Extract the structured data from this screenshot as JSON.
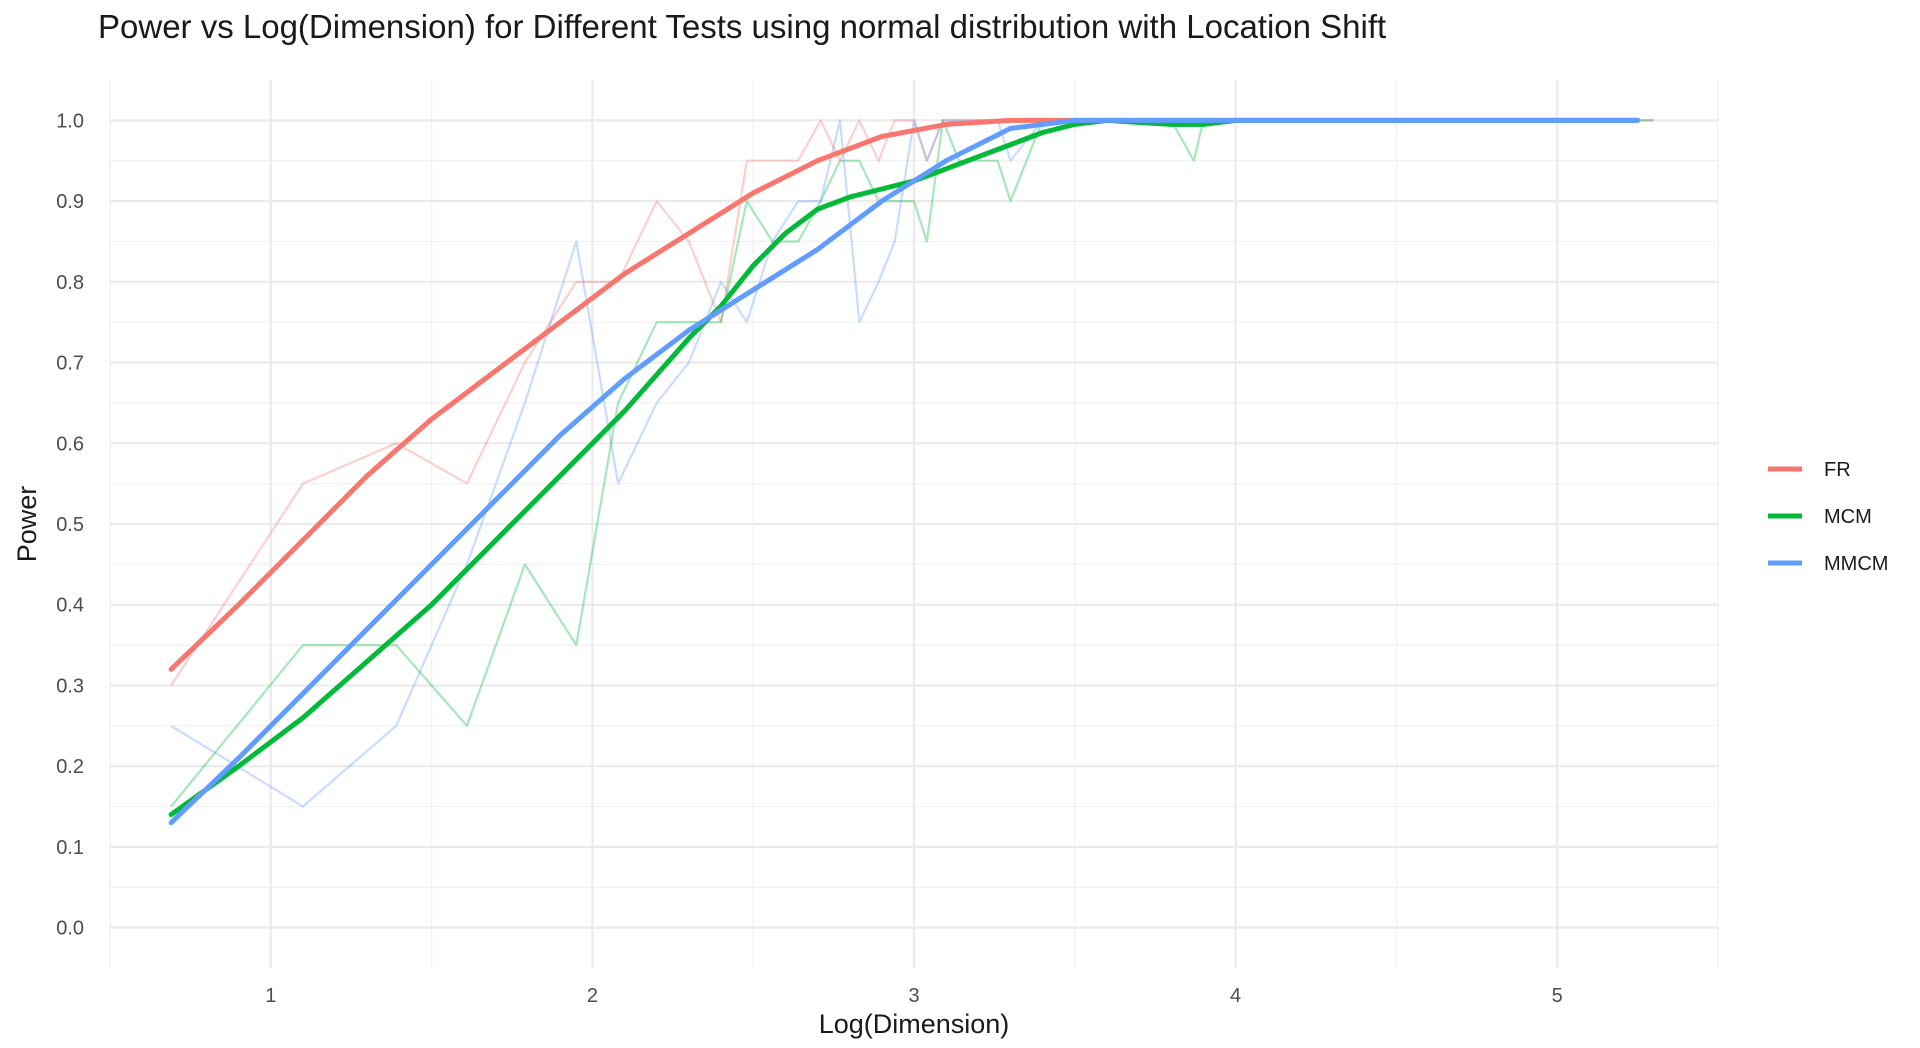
{
  "chart_data": {
    "type": "line",
    "title": "Power vs Log(Dimension) for Different Tests using normal distribution with Location Shift",
    "xlabel": "Log(Dimension)",
    "ylabel": "Power",
    "xlim": [
      0.5,
      5.5
    ],
    "ylim": [
      -0.05,
      1.05
    ],
    "x_ticks": [
      1,
      2,
      3,
      4,
      5
    ],
    "x_tick_labels": [
      "1",
      "2",
      "3",
      "4",
      "5"
    ],
    "y_ticks": [
      0.0,
      0.1,
      0.2,
      0.3,
      0.4,
      0.5,
      0.6,
      0.7,
      0.8,
      0.9,
      1.0
    ],
    "y_tick_labels": [
      "0.0",
      "0.1",
      "0.2",
      "0.3",
      "0.4",
      "0.5",
      "0.6",
      "0.7",
      "0.8",
      "0.9",
      "1.0"
    ],
    "grid": true,
    "legend_position": "right",
    "series": [
      {
        "name": "FR",
        "color": "#F8766D",
        "raw": [
          [
            0.69,
            0.3
          ],
          [
            1.1,
            0.55
          ],
          [
            1.39,
            0.6
          ],
          [
            1.61,
            0.55
          ],
          [
            1.79,
            0.7
          ],
          [
            1.95,
            0.8
          ],
          [
            2.08,
            0.8
          ],
          [
            2.2,
            0.9
          ],
          [
            2.3,
            0.85
          ],
          [
            2.4,
            0.75
          ],
          [
            2.48,
            0.95
          ],
          [
            2.56,
            0.95
          ],
          [
            2.64,
            0.95
          ],
          [
            2.71,
            1.0
          ],
          [
            2.77,
            0.95
          ],
          [
            2.83,
            1.0
          ],
          [
            2.89,
            0.95
          ],
          [
            2.94,
            1.0
          ],
          [
            3.0,
            1.0
          ],
          [
            3.04,
            0.95
          ],
          [
            3.09,
            1.0
          ],
          [
            3.14,
            1.0
          ],
          [
            3.18,
            1.0
          ],
          [
            3.22,
            1.0
          ],
          [
            3.26,
            1.0
          ],
          [
            3.3,
            1.0
          ],
          [
            3.4,
            1.0
          ],
          [
            3.5,
            1.0
          ],
          [
            4.0,
            1.0
          ],
          [
            4.5,
            1.0
          ],
          [
            5.0,
            1.0
          ],
          [
            5.3,
            1.0
          ]
        ],
        "smooth": [
          [
            0.69,
            0.32
          ],
          [
            0.9,
            0.4
          ],
          [
            1.1,
            0.48
          ],
          [
            1.3,
            0.56
          ],
          [
            1.5,
            0.63
          ],
          [
            1.7,
            0.69
          ],
          [
            1.9,
            0.75
          ],
          [
            2.1,
            0.81
          ],
          [
            2.3,
            0.86
          ],
          [
            2.5,
            0.91
          ],
          [
            2.7,
            0.95
          ],
          [
            2.9,
            0.98
          ],
          [
            3.1,
            0.995
          ],
          [
            3.3,
            1.0
          ],
          [
            3.5,
            1.0
          ],
          [
            4.0,
            1.0
          ],
          [
            5.0,
            1.0
          ],
          [
            5.25,
            1.0
          ]
        ]
      },
      {
        "name": "MCM",
        "color": "#00BA38",
        "raw": [
          [
            0.69,
            0.15
          ],
          [
            1.1,
            0.35
          ],
          [
            1.39,
            0.35
          ],
          [
            1.61,
            0.25
          ],
          [
            1.79,
            0.45
          ],
          [
            1.95,
            0.35
          ],
          [
            2.08,
            0.65
          ],
          [
            2.2,
            0.75
          ],
          [
            2.3,
            0.75
          ],
          [
            2.4,
            0.75
          ],
          [
            2.48,
            0.9
          ],
          [
            2.56,
            0.85
          ],
          [
            2.64,
            0.85
          ],
          [
            2.71,
            0.9
          ],
          [
            2.77,
            0.95
          ],
          [
            2.83,
            0.95
          ],
          [
            2.89,
            0.9
          ],
          [
            2.94,
            0.9
          ],
          [
            3.0,
            0.9
          ],
          [
            3.04,
            0.85
          ],
          [
            3.09,
            1.0
          ],
          [
            3.14,
            0.95
          ],
          [
            3.18,
            0.95
          ],
          [
            3.22,
            0.95
          ],
          [
            3.26,
            0.95
          ],
          [
            3.3,
            0.9
          ],
          [
            3.4,
            1.0
          ],
          [
            3.5,
            1.0
          ],
          [
            3.8,
            1.0
          ],
          [
            3.87,
            0.95
          ],
          [
            3.9,
            1.0
          ],
          [
            4.0,
            1.0
          ],
          [
            4.5,
            1.0
          ],
          [
            5.0,
            1.0
          ],
          [
            5.3,
            1.0
          ]
        ],
        "smooth": [
          [
            0.69,
            0.14
          ],
          [
            0.9,
            0.2
          ],
          [
            1.1,
            0.26
          ],
          [
            1.3,
            0.33
          ],
          [
            1.5,
            0.4
          ],
          [
            1.7,
            0.48
          ],
          [
            1.9,
            0.56
          ],
          [
            2.1,
            0.64
          ],
          [
            2.3,
            0.73
          ],
          [
            2.4,
            0.77
          ],
          [
            2.5,
            0.82
          ],
          [
            2.6,
            0.86
          ],
          [
            2.7,
            0.89
          ],
          [
            2.8,
            0.905
          ],
          [
            2.9,
            0.915
          ],
          [
            3.0,
            0.925
          ],
          [
            3.1,
            0.94
          ],
          [
            3.2,
            0.955
          ],
          [
            3.3,
            0.97
          ],
          [
            3.4,
            0.985
          ],
          [
            3.5,
            0.995
          ],
          [
            3.6,
            1.0
          ],
          [
            3.8,
            0.995
          ],
          [
            3.9,
            0.995
          ],
          [
            4.0,
            1.0
          ],
          [
            4.5,
            1.0
          ],
          [
            5.0,
            1.0
          ],
          [
            5.25,
            1.0
          ]
        ]
      },
      {
        "name": "MMCM",
        "color": "#619CFF",
        "raw": [
          [
            0.69,
            0.25
          ],
          [
            1.1,
            0.15
          ],
          [
            1.39,
            0.25
          ],
          [
            1.61,
            0.45
          ],
          [
            1.79,
            0.65
          ],
          [
            1.95,
            0.85
          ],
          [
            2.08,
            0.55
          ],
          [
            2.2,
            0.65
          ],
          [
            2.3,
            0.7
          ],
          [
            2.4,
            0.8
          ],
          [
            2.48,
            0.75
          ],
          [
            2.56,
            0.85
          ],
          [
            2.64,
            0.9
          ],
          [
            2.71,
            0.9
          ],
          [
            2.77,
            1.0
          ],
          [
            2.83,
            0.75
          ],
          [
            2.89,
            0.8
          ],
          [
            2.94,
            0.85
          ],
          [
            3.0,
            1.0
          ],
          [
            3.04,
            0.95
          ],
          [
            3.09,
            1.0
          ],
          [
            3.14,
            1.0
          ],
          [
            3.18,
            1.0
          ],
          [
            3.22,
            1.0
          ],
          [
            3.26,
            1.0
          ],
          [
            3.3,
            0.95
          ],
          [
            3.4,
            1.0
          ],
          [
            3.5,
            1.0
          ],
          [
            4.0,
            1.0
          ],
          [
            4.5,
            1.0
          ],
          [
            5.0,
            1.0
          ],
          [
            5.25,
            1.0
          ]
        ],
        "smooth": [
          [
            0.69,
            0.13
          ],
          [
            0.9,
            0.21
          ],
          [
            1.1,
            0.29
          ],
          [
            1.3,
            0.37
          ],
          [
            1.5,
            0.45
          ],
          [
            1.7,
            0.53
          ],
          [
            1.9,
            0.61
          ],
          [
            2.1,
            0.68
          ],
          [
            2.3,
            0.74
          ],
          [
            2.5,
            0.79
          ],
          [
            2.7,
            0.84
          ],
          [
            2.9,
            0.9
          ],
          [
            3.1,
            0.95
          ],
          [
            3.3,
            0.99
          ],
          [
            3.5,
            1.0
          ],
          [
            4.0,
            1.0
          ],
          [
            5.0,
            1.0
          ],
          [
            5.25,
            1.0
          ]
        ]
      }
    ]
  }
}
